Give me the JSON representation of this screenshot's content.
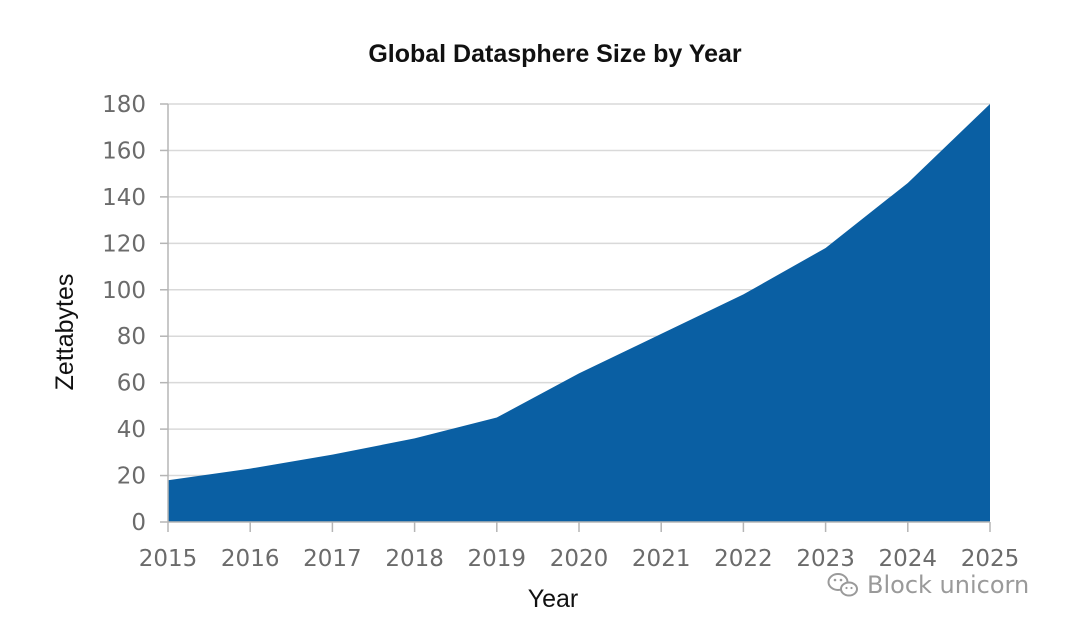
{
  "chart_data": {
    "type": "area",
    "title": "Global Datasphere Size by Year",
    "xlabel": "Year",
    "ylabel": "Zettabytes",
    "x": [
      2015,
      2016,
      2017,
      2018,
      2019,
      2020,
      2021,
      2022,
      2023,
      2024,
      2025
    ],
    "series": [
      {
        "values": [
          18,
          23,
          29,
          36,
          45,
          64,
          81,
          98,
          118,
          146,
          180
        ]
      }
    ],
    "ylim": [
      0,
      180
    ],
    "yticks": [
      0,
      20,
      40,
      60,
      80,
      100,
      120,
      140,
      160,
      180
    ],
    "xticks": [
      "2015",
      "2016",
      "2017",
      "2018",
      "2019",
      "2020",
      "2021",
      "2022",
      "2023",
      "2024",
      "2025"
    ],
    "grid": true,
    "legend": "none",
    "colors": {
      "area": "#0a5fa3",
      "grid": "#d9d9d9",
      "axis": "#b5b5b5"
    }
  },
  "watermark": {
    "text": "Block unicorn",
    "icon": "wechat-icon"
  }
}
